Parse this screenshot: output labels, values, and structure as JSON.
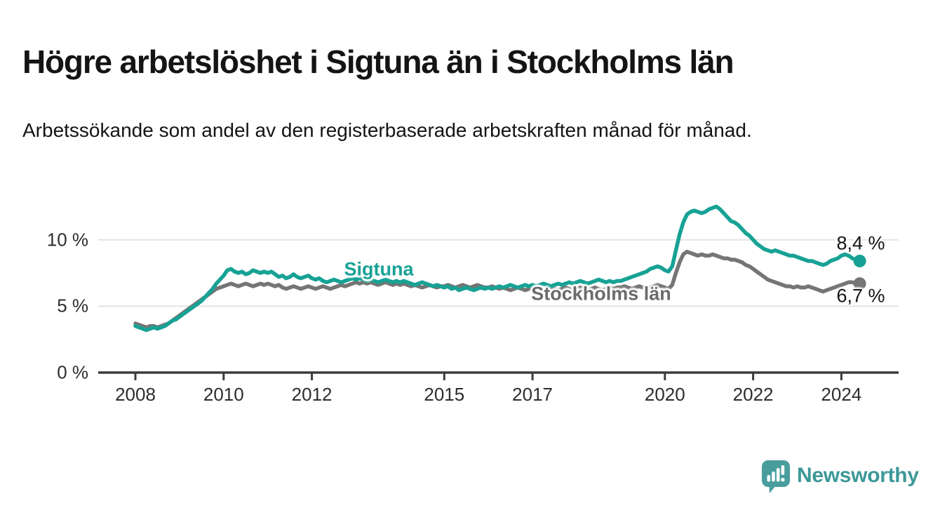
{
  "title": "Högre arbetslöshet i Sigtuna än i Stockholms län",
  "subtitle": "Arbetssökande som andel av den registerbaserade arbetskraften månad för månad.",
  "colors": {
    "sigtuna": "#17a295",
    "stockholm": "#757575",
    "axis": "#3c3c3c",
    "grid": "#e3e3e3",
    "logo": "#4a9d9d",
    "logo_text": "#3d9898"
  },
  "chart_data": {
    "type": "line",
    "unit": "%",
    "x_start_year": 2008,
    "x_step": "month",
    "x_end_label_period": "2024-06",
    "x_ticks": [
      2008,
      2010,
      2012,
      2015,
      2017,
      2020,
      2022,
      2024
    ],
    "y_ticks": [
      0,
      5,
      10
    ],
    "y_tick_labels": [
      "0 %",
      "5 %",
      "10 %"
    ],
    "ylim": [
      0,
      13.5
    ],
    "grid": "horizontal-only",
    "legend": "inline-labels",
    "series": [
      {
        "name": "Stockholms län",
        "slug": "stockholms-lan",
        "color": "#757575",
        "end_label": "6,7 %",
        "end_value": 6.7,
        "values": [
          3.7,
          3.6,
          3.5,
          3.4,
          3.5,
          3.5,
          3.4,
          3.5,
          3.6,
          3.7,
          3.9,
          4.1,
          4.3,
          4.5,
          4.7,
          4.9,
          5.1,
          5.3,
          5.5,
          5.7,
          5.9,
          6.1,
          6.3,
          6.4,
          6.5,
          6.6,
          6.7,
          6.6,
          6.5,
          6.6,
          6.7,
          6.6,
          6.5,
          6.6,
          6.7,
          6.6,
          6.7,
          6.6,
          6.5,
          6.6,
          6.4,
          6.3,
          6.4,
          6.5,
          6.4,
          6.3,
          6.4,
          6.5,
          6.4,
          6.3,
          6.4,
          6.5,
          6.4,
          6.3,
          6.4,
          6.5,
          6.6,
          6.5,
          6.6,
          6.7,
          6.8,
          6.7,
          6.8,
          6.7,
          6.8,
          6.7,
          6.6,
          6.7,
          6.8,
          6.7,
          6.6,
          6.7,
          6.6,
          6.7,
          6.6,
          6.5,
          6.6,
          6.5,
          6.4,
          6.5,
          6.6,
          6.5,
          6.4,
          6.5,
          6.5,
          6.6,
          6.5,
          6.4,
          6.5,
          6.6,
          6.5,
          6.4,
          6.5,
          6.6,
          6.5,
          6.4,
          6.4,
          6.5,
          6.4,
          6.3,
          6.4,
          6.3,
          6.2,
          6.3,
          6.4,
          6.3,
          6.2,
          6.3,
          6.3,
          6.4,
          6.3,
          6.2,
          6.3,
          6.4,
          6.3,
          6.2,
          6.3,
          6.4,
          6.3,
          6.2,
          6.3,
          6.4,
          6.3,
          6.2,
          6.3,
          6.4,
          6.3,
          6.2,
          6.3,
          6.4,
          6.3,
          6.4,
          6.4,
          6.5,
          6.4,
          6.3,
          6.4,
          6.5,
          6.4,
          6.3,
          6.4,
          6.5,
          6.6,
          6.5,
          6.4,
          6.3,
          6.6,
          7.5,
          8.3,
          8.9,
          9.1,
          9.0,
          8.9,
          8.8,
          8.9,
          8.8,
          8.8,
          8.9,
          8.8,
          8.7,
          8.6,
          8.6,
          8.5,
          8.5,
          8.4,
          8.3,
          8.1,
          8.0,
          7.8,
          7.6,
          7.4,
          7.2,
          7.0,
          6.9,
          6.8,
          6.7,
          6.6,
          6.5,
          6.5,
          6.4,
          6.5,
          6.4,
          6.4,
          6.5,
          6.4,
          6.3,
          6.2,
          6.1,
          6.2,
          6.3,
          6.4,
          6.5,
          6.6,
          6.7,
          6.8,
          6.8,
          6.7,
          6.7
        ]
      },
      {
        "name": "Sigtuna",
        "slug": "sigtuna",
        "color": "#17a295",
        "end_label": "8,4 %",
        "end_value": 8.4,
        "values": [
          3.5,
          3.4,
          3.3,
          3.2,
          3.3,
          3.4,
          3.3,
          3.4,
          3.5,
          3.7,
          3.9,
          4.0,
          4.2,
          4.4,
          4.6,
          4.8,
          5.0,
          5.2,
          5.4,
          5.7,
          6.0,
          6.3,
          6.7,
          7.0,
          7.3,
          7.7,
          7.8,
          7.6,
          7.5,
          7.6,
          7.4,
          7.5,
          7.7,
          7.6,
          7.5,
          7.6,
          7.5,
          7.6,
          7.4,
          7.2,
          7.3,
          7.1,
          7.2,
          7.4,
          7.2,
          7.1,
          7.2,
          7.3,
          7.1,
          7.0,
          7.1,
          6.9,
          6.8,
          6.9,
          7.0,
          6.9,
          6.8,
          6.9,
          7.0,
          7.1,
          7.0,
          7.1,
          7.0,
          6.9,
          7.0,
          6.9,
          6.8,
          6.9,
          7.0,
          6.9,
          6.8,
          6.9,
          6.8,
          6.9,
          6.8,
          6.7,
          6.6,
          6.7,
          6.8,
          6.7,
          6.6,
          6.5,
          6.6,
          6.5,
          6.4,
          6.5,
          6.3,
          6.4,
          6.2,
          6.3,
          6.4,
          6.3,
          6.2,
          6.3,
          6.4,
          6.3,
          6.4,
          6.3,
          6.4,
          6.5,
          6.4,
          6.5,
          6.6,
          6.5,
          6.4,
          6.5,
          6.6,
          6.5,
          6.6,
          6.5,
          6.6,
          6.7,
          6.6,
          6.5,
          6.6,
          6.7,
          6.6,
          6.7,
          6.8,
          6.7,
          6.8,
          6.9,
          6.8,
          6.7,
          6.8,
          6.9,
          7.0,
          6.9,
          6.8,
          6.9,
          6.8,
          6.9,
          6.9,
          7.0,
          7.1,
          7.2,
          7.3,
          7.4,
          7.5,
          7.6,
          7.8,
          7.9,
          8.0,
          7.9,
          7.7,
          7.6,
          8.0,
          9.2,
          10.4,
          11.3,
          11.9,
          12.1,
          12.2,
          12.1,
          12.0,
          12.1,
          12.3,
          12.4,
          12.5,
          12.3,
          12.0,
          11.7,
          11.4,
          11.3,
          11.1,
          10.8,
          10.5,
          10.3,
          10.0,
          9.7,
          9.5,
          9.3,
          9.2,
          9.1,
          9.2,
          9.1,
          9.0,
          8.9,
          8.8,
          8.8,
          8.7,
          8.6,
          8.5,
          8.4,
          8.4,
          8.3,
          8.2,
          8.1,
          8.2,
          8.4,
          8.5,
          8.6,
          8.8,
          8.9,
          8.8,
          8.6,
          8.5,
          8.4
        ]
      }
    ]
  },
  "branding": {
    "logo_text": "Newsworthy"
  }
}
